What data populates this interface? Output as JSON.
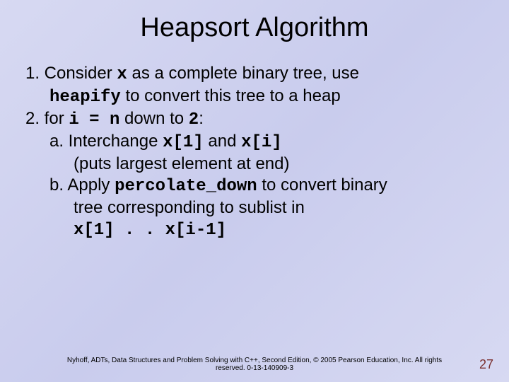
{
  "title": "Heapsort Algorithm",
  "lines": {
    "l1a": "1. Consider ",
    "l1b": "x",
    "l1c": " as a complete binary tree, use ",
    "l2a": "heapify",
    "l2b": " to convert this tree to a heap",
    "l3a": "2. for ",
    "l3b": "i = n",
    "l3c": " down to ",
    "l3d": "2",
    "l3e": ":",
    "l4a": "a. Interchange ",
    "l4b": "x[1]",
    "l4c": " and ",
    "l4d": "x[i]",
    "l5": "(puts largest element at end)",
    "l6a": "b. Apply ",
    "l6b": "percolate_down",
    "l6c": " to convert binary",
    "l7": "tree corresponding to sublist in",
    "l8": "x[1] . . x[i-1]"
  },
  "footer": "Nyhoff, ADTs, Data Structures and Problem Solving with C++, Second Edition, © 2005 Pearson Education, Inc. All rights reserved. 0-13-140909-3",
  "pagenum": "27"
}
